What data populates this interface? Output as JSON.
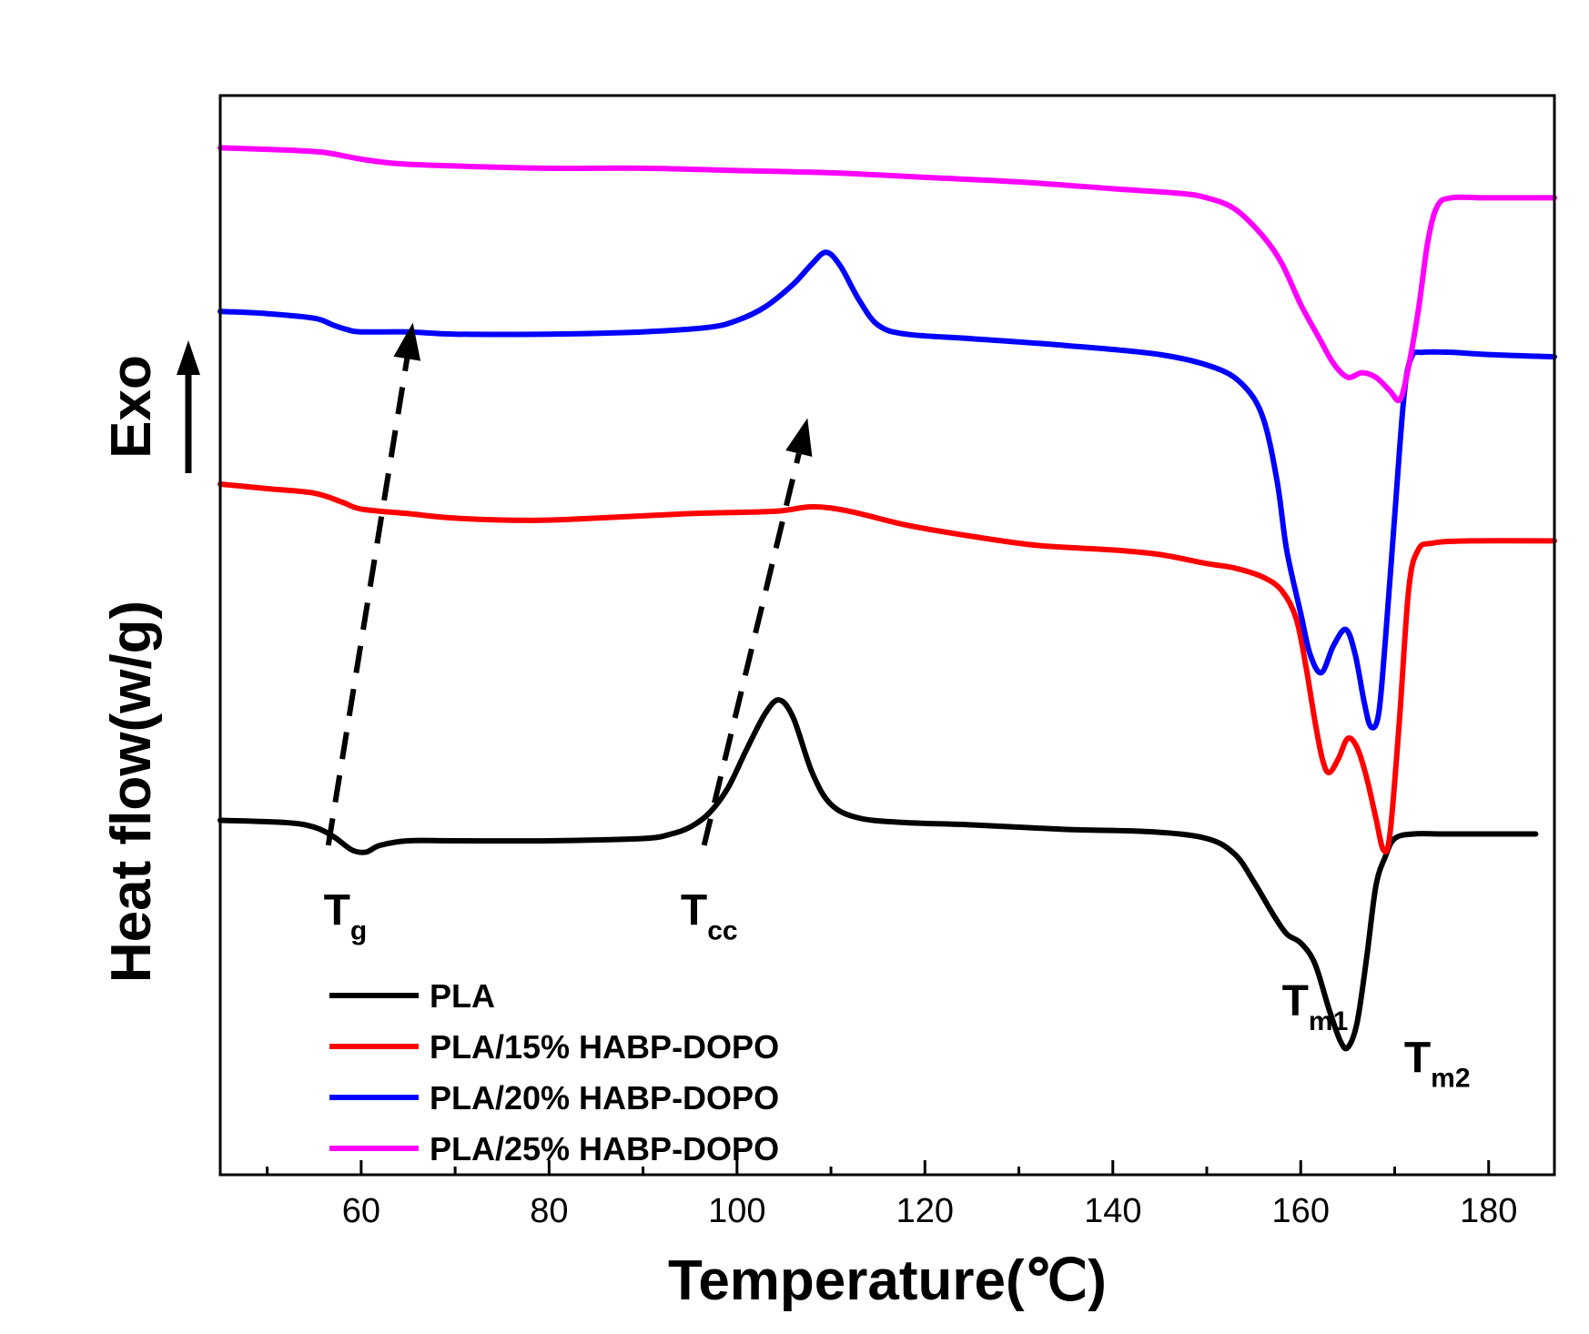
{
  "chart_data": {
    "type": "line",
    "xlabel": "Temperature(℃)",
    "ylabel": "Heat flow(w/g)",
    "exo_label": "Exo",
    "xlim": [
      45,
      187
    ],
    "ylim": [
      -3.65,
      1.1
    ],
    "x_ticks": [
      60,
      80,
      100,
      120,
      140,
      160,
      180
    ],
    "y_ticks_shown": false,
    "grid": false,
    "legend_position": "bottom-left",
    "annotations": [
      {
        "base": "T",
        "sub": "g",
        "x": 56,
        "y": -2.55
      },
      {
        "base": "T",
        "sub": "cc",
        "x": 94,
        "y": -2.55
      },
      {
        "base": "T",
        "sub": "m1",
        "x": 158,
        "y": -2.95
      },
      {
        "base": "T",
        "sub": "m2",
        "x": 171,
        "y": -3.2
      }
    ],
    "trend_arrows": [
      {
        "from": [
          56.5,
          -2.2
        ],
        "to": [
          65.5,
          0.1
        ]
      },
      {
        "from": [
          96.5,
          -2.2
        ],
        "to": [
          107.5,
          -0.32
        ]
      }
    ],
    "series": [
      {
        "name": "PLA",
        "color": "#000000",
        "points": [
          [
            45,
            -2.09
          ],
          [
            52,
            -2.1
          ],
          [
            55,
            -2.12
          ],
          [
            57,
            -2.16
          ],
          [
            59,
            -2.22
          ],
          [
            60.5,
            -2.23
          ],
          [
            62,
            -2.2
          ],
          [
            65,
            -2.18
          ],
          [
            70,
            -2.18
          ],
          [
            80,
            -2.18
          ],
          [
            90,
            -2.17
          ],
          [
            93,
            -2.15
          ],
          [
            95,
            -2.12
          ],
          [
            97,
            -2.06
          ],
          [
            99,
            -1.95
          ],
          [
            101,
            -1.78
          ],
          [
            103,
            -1.62
          ],
          [
            104.5,
            -1.56
          ],
          [
            106,
            -1.64
          ],
          [
            108,
            -1.88
          ],
          [
            110,
            -2.02
          ],
          [
            113,
            -2.08
          ],
          [
            118,
            -2.1
          ],
          [
            125,
            -2.11
          ],
          [
            135,
            -2.13
          ],
          [
            144,
            -2.14
          ],
          [
            150,
            -2.17
          ],
          [
            153,
            -2.24
          ],
          [
            155,
            -2.36
          ],
          [
            157,
            -2.5
          ],
          [
            158.5,
            -2.59
          ],
          [
            160,
            -2.63
          ],
          [
            161.5,
            -2.72
          ],
          [
            163,
            -2.92
          ],
          [
            164.2,
            -3.06
          ],
          [
            165,
            -3.09
          ],
          [
            166,
            -2.98
          ],
          [
            167,
            -2.7
          ],
          [
            168,
            -2.38
          ],
          [
            169,
            -2.25
          ],
          [
            170,
            -2.17
          ],
          [
            172,
            -2.15
          ],
          [
            175,
            -2.15
          ],
          [
            180,
            -2.15
          ],
          [
            185,
            -2.15
          ]
        ]
      },
      {
        "name": "PLA/15% HABP-DOPO",
        "color": "#ff0000",
        "points": [
          [
            45,
            -0.61
          ],
          [
            50,
            -0.63
          ],
          [
            55,
            -0.65
          ],
          [
            58,
            -0.69
          ],
          [
            60,
            -0.72
          ],
          [
            65,
            -0.74
          ],
          [
            70,
            -0.76
          ],
          [
            78,
            -0.77
          ],
          [
            85,
            -0.76
          ],
          [
            95,
            -0.74
          ],
          [
            104,
            -0.73
          ],
          [
            108,
            -0.71
          ],
          [
            112,
            -0.73
          ],
          [
            118,
            -0.79
          ],
          [
            125,
            -0.84
          ],
          [
            132,
            -0.88
          ],
          [
            140,
            -0.9
          ],
          [
            145,
            -0.92
          ],
          [
            150,
            -0.96
          ],
          [
            153,
            -0.98
          ],
          [
            156,
            -1.02
          ],
          [
            158,
            -1.08
          ],
          [
            159.5,
            -1.2
          ],
          [
            160.5,
            -1.4
          ],
          [
            161.5,
            -1.65
          ],
          [
            162.3,
            -1.82
          ],
          [
            163,
            -1.88
          ],
          [
            164,
            -1.82
          ],
          [
            165,
            -1.73
          ],
          [
            166,
            -1.77
          ],
          [
            167,
            -1.9
          ],
          [
            168,
            -2.08
          ],
          [
            168.8,
            -2.22
          ],
          [
            169.5,
            -2.15
          ],
          [
            170.5,
            -1.65
          ],
          [
            171.5,
            -1.07
          ],
          [
            172.5,
            -0.9
          ],
          [
            174,
            -0.87
          ],
          [
            178,
            -0.86
          ],
          [
            187,
            -0.86
          ]
        ]
      },
      {
        "name": "PLA/20% HABP-DOPO",
        "color": "#0000ff",
        "points": [
          [
            45,
            0.15
          ],
          [
            50,
            0.14
          ],
          [
            55,
            0.12
          ],
          [
            57,
            0.09
          ],
          [
            58.5,
            0.07
          ],
          [
            60,
            0.06
          ],
          [
            65,
            0.06
          ],
          [
            70,
            0.05
          ],
          [
            80,
            0.05
          ],
          [
            90,
            0.06
          ],
          [
            97,
            0.08
          ],
          [
            100,
            0.11
          ],
          [
            103,
            0.17
          ],
          [
            106,
            0.27
          ],
          [
            108,
            0.36
          ],
          [
            109.5,
            0.41
          ],
          [
            111,
            0.35
          ],
          [
            113,
            0.2
          ],
          [
            115,
            0.09
          ],
          [
            118,
            0.05
          ],
          [
            125,
            0.03
          ],
          [
            135,
            0.0
          ],
          [
            145,
            -0.04
          ],
          [
            151,
            -0.1
          ],
          [
            154,
            -0.18
          ],
          [
            156,
            -0.32
          ],
          [
            157.5,
            -0.6
          ],
          [
            158.5,
            -0.9
          ],
          [
            160,
            -1.18
          ],
          [
            161,
            -1.36
          ],
          [
            162.2,
            -1.44
          ],
          [
            163.5,
            -1.32
          ],
          [
            164.8,
            -1.25
          ],
          [
            165.8,
            -1.36
          ],
          [
            166.8,
            -1.58
          ],
          [
            167.5,
            -1.68
          ],
          [
            168.3,
            -1.62
          ],
          [
            169,
            -1.3
          ],
          [
            170,
            -0.75
          ],
          [
            171,
            -0.22
          ],
          [
            171.8,
            -0.05
          ],
          [
            173,
            -0.03
          ],
          [
            176,
            -0.03
          ],
          [
            180,
            -0.04
          ],
          [
            187,
            -0.05
          ]
        ]
      },
      {
        "name": "PLA/25% HABP-DOPO",
        "color": "#ff00ff",
        "points": [
          [
            45,
            0.87
          ],
          [
            52,
            0.86
          ],
          [
            56,
            0.85
          ],
          [
            60,
            0.82
          ],
          [
            64,
            0.8
          ],
          [
            70,
            0.79
          ],
          [
            80,
            0.78
          ],
          [
            90,
            0.78
          ],
          [
            100,
            0.77
          ],
          [
            110,
            0.76
          ],
          [
            120,
            0.74
          ],
          [
            130,
            0.72
          ],
          [
            140,
            0.69
          ],
          [
            147,
            0.67
          ],
          [
            150,
            0.65
          ],
          [
            153,
            0.6
          ],
          [
            156,
            0.48
          ],
          [
            158,
            0.36
          ],
          [
            160,
            0.18
          ],
          [
            162,
            0.03
          ],
          [
            163.5,
            -0.08
          ],
          [
            165,
            -0.14
          ],
          [
            166.5,
            -0.12
          ],
          [
            168,
            -0.14
          ],
          [
            169.5,
            -0.2
          ],
          [
            170.5,
            -0.24
          ],
          [
            171.3,
            -0.13
          ],
          [
            172.5,
            0.15
          ],
          [
            173.5,
            0.45
          ],
          [
            174.5,
            0.61
          ],
          [
            176,
            0.65
          ],
          [
            180,
            0.65
          ],
          [
            187,
            0.65
          ]
        ]
      }
    ]
  }
}
